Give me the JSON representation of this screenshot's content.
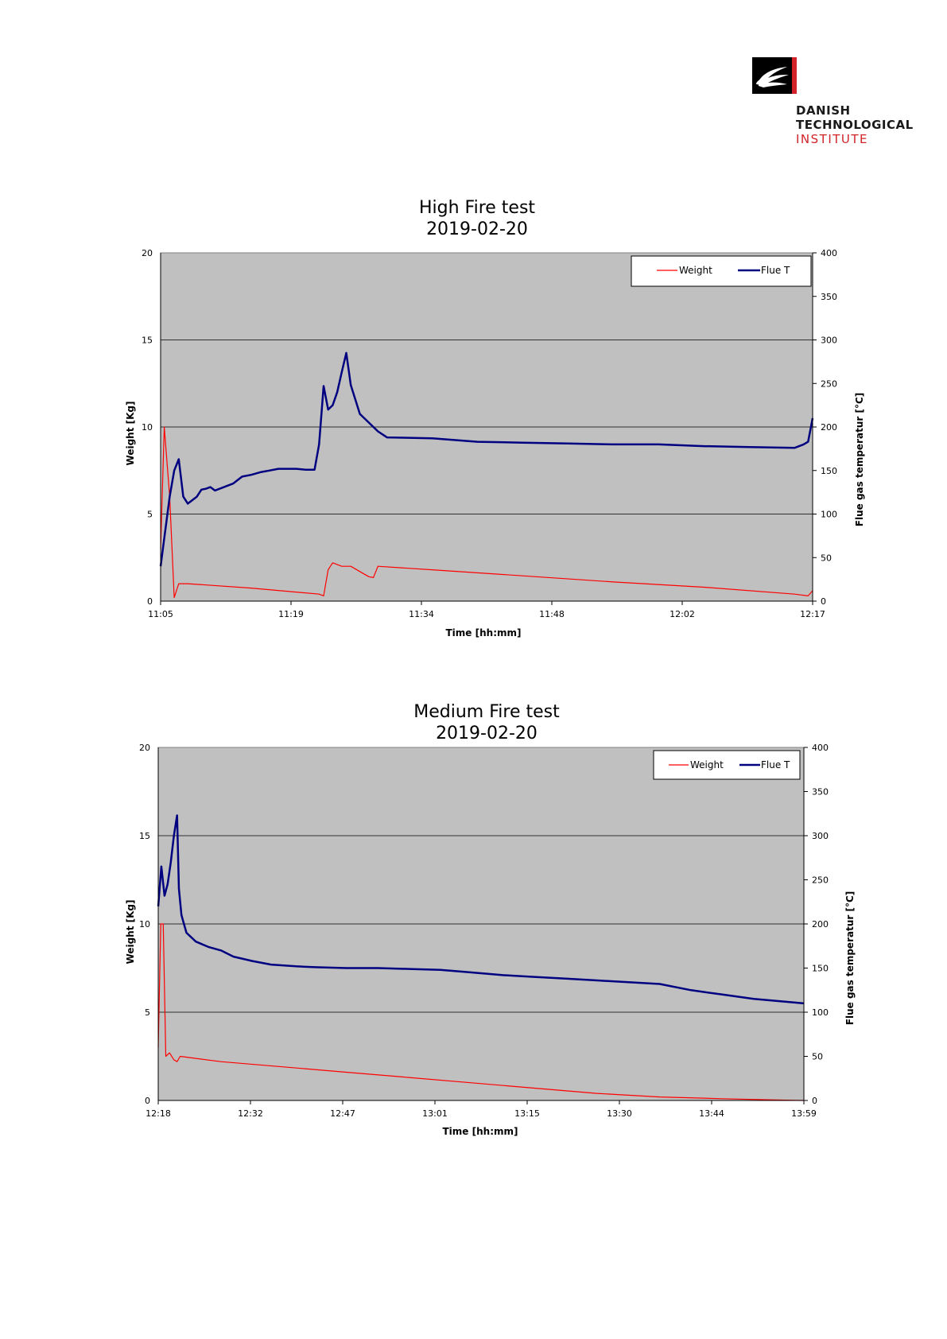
{
  "logo": {
    "line1": "DANISH",
    "line2": "TECHNOLOGICAL",
    "line3": "INSTITUTE",
    "icon": "dti-hand-logo-icon",
    "accent_color": "#d2232a"
  },
  "chart_data": [
    {
      "type": "line",
      "title_line1": "High Fire test",
      "title_line2": "2019-02-20",
      "xlabel": "Time [hh:mm]",
      "ylabel_left": "Weight [Kg]",
      "ylabel_right": "Flue gas temperatur [°C]",
      "x_ticks": [
        "11:05",
        "11:19",
        "11:34",
        "11:48",
        "12:02",
        "12:17"
      ],
      "x_unit": "minutes after 11:05",
      "xlim": [
        0,
        72
      ],
      "ylim_left": [
        0,
        20
      ],
      "ylim_right": [
        0,
        400
      ],
      "left_ticks": [
        0,
        5,
        10,
        15,
        20
      ],
      "right_ticks": [
        0,
        50,
        100,
        150,
        200,
        250,
        300,
        350,
        400
      ],
      "grid": "horizontal",
      "legend_position": "top-right",
      "plot_background": "#c0c0c0",
      "series": [
        {
          "name": "Weight",
          "axis": "left",
          "color": "#ff0000",
          "points": [
            [
              0,
              3.0
            ],
            [
              0.4,
              10.0
            ],
            [
              1.0,
              6.0
            ],
            [
              1.5,
              0.2
            ],
            [
              2.0,
              1.0
            ],
            [
              3.0,
              1.0
            ],
            [
              10.0,
              0.75
            ],
            [
              17.5,
              0.4
            ],
            [
              18.0,
              0.3
            ],
            [
              18.5,
              1.8
            ],
            [
              19.0,
              2.2
            ],
            [
              20.0,
              2.0
            ],
            [
              21.0,
              2.0
            ],
            [
              22.0,
              1.7
            ],
            [
              23.0,
              1.4
            ],
            [
              23.5,
              1.35
            ],
            [
              24.0,
              2.0
            ],
            [
              30.0,
              1.8
            ],
            [
              40.0,
              1.45
            ],
            [
              50.0,
              1.1
            ],
            [
              60.0,
              0.8
            ],
            [
              70.0,
              0.4
            ],
            [
              71.5,
              0.3
            ],
            [
              72.0,
              0.6
            ]
          ]
        },
        {
          "name": "Flue T",
          "axis": "right",
          "color": "#000080",
          "points": [
            [
              0,
              40
            ],
            [
              0.5,
              80
            ],
            [
              1.0,
              120
            ],
            [
              1.5,
              150
            ],
            [
              2.0,
              163
            ],
            [
              2.5,
              120
            ],
            [
              3.0,
              112
            ],
            [
              4.0,
              120
            ],
            [
              4.5,
              128
            ],
            [
              5.0,
              129
            ],
            [
              5.5,
              131
            ],
            [
              6.0,
              127
            ],
            [
              7.0,
              131
            ],
            [
              8.0,
              135
            ],
            [
              9.0,
              143
            ],
            [
              10.0,
              145
            ],
            [
              11.0,
              148
            ],
            [
              12.0,
              150
            ],
            [
              13.0,
              152
            ],
            [
              14.0,
              152
            ],
            [
              15.0,
              152
            ],
            [
              16.0,
              151
            ],
            [
              17.0,
              151
            ],
            [
              17.5,
              180
            ],
            [
              18.0,
              247
            ],
            [
              18.5,
              220
            ],
            [
              19.0,
              225
            ],
            [
              19.5,
              240
            ],
            [
              20.0,
              263
            ],
            [
              20.5,
              285
            ],
            [
              21.0,
              248
            ],
            [
              22.0,
              215
            ],
            [
              23.0,
              205
            ],
            [
              24.0,
              195
            ],
            [
              25.0,
              188
            ],
            [
              30.0,
              187
            ],
            [
              35.0,
              183
            ],
            [
              40.0,
              182
            ],
            [
              45.0,
              181
            ],
            [
              50.0,
              180
            ],
            [
              55.0,
              180
            ],
            [
              60.0,
              178
            ],
            [
              65.0,
              177
            ],
            [
              70.0,
              176
            ],
            [
              71.0,
              180
            ],
            [
              71.5,
              183
            ],
            [
              72.0,
              210
            ]
          ]
        }
      ]
    },
    {
      "type": "line",
      "title_line1": "Medium Fire test",
      "title_line2": "2019-02-20",
      "xlabel": "Time [hh:mm]",
      "ylabel_left": "Weight [Kg]",
      "ylabel_right": "Flue gas temperatur [°C]",
      "x_ticks": [
        "12:18",
        "12:32",
        "12:47",
        "13:01",
        "13:15",
        "13:30",
        "13:44",
        "13:59"
      ],
      "x_unit": "minutes after 12:18",
      "xlim": [
        0,
        103
      ],
      "ylim_left": [
        0,
        20
      ],
      "ylim_right": [
        0,
        400
      ],
      "left_ticks": [
        0,
        5,
        10,
        15,
        20
      ],
      "right_ticks": [
        0,
        50,
        100,
        150,
        200,
        250,
        300,
        350,
        400
      ],
      "grid": "horizontal",
      "legend_position": "top-right",
      "plot_background": "#c0c0c0",
      "series": [
        {
          "name": "Weight",
          "axis": "left",
          "color": "#ff0000",
          "points": [
            [
              0,
              3.0
            ],
            [
              0.4,
              10.0
            ],
            [
              0.8,
              10.0
            ],
            [
              1.2,
              2.5
            ],
            [
              1.8,
              2.7
            ],
            [
              2.5,
              2.3
            ],
            [
              3.0,
              2.2
            ],
            [
              3.5,
              2.5
            ],
            [
              10.0,
              2.2
            ],
            [
              20.0,
              1.9
            ],
            [
              30.0,
              1.6
            ],
            [
              40.0,
              1.3
            ],
            [
              50.0,
              1.0
            ],
            [
              60.0,
              0.7
            ],
            [
              70.0,
              0.4
            ],
            [
              80.0,
              0.2
            ],
            [
              90.0,
              0.1
            ],
            [
              100.0,
              0.02
            ],
            [
              103.0,
              0.0
            ]
          ]
        },
        {
          "name": "Flue T",
          "axis": "right",
          "color": "#000080",
          "points": [
            [
              0,
              220
            ],
            [
              0.5,
              265
            ],
            [
              1.0,
              232
            ],
            [
              1.5,
              245
            ],
            [
              2.0,
              270
            ],
            [
              2.5,
              300
            ],
            [
              3.0,
              323
            ],
            [
              3.3,
              240
            ],
            [
              3.7,
              210
            ],
            [
              4.5,
              190
            ],
            [
              6.0,
              180
            ],
            [
              8.0,
              174
            ],
            [
              10.0,
              170
            ],
            [
              12.0,
              163
            ],
            [
              15.0,
              158
            ],
            [
              18.0,
              154
            ],
            [
              22.0,
              152
            ],
            [
              25.0,
              151
            ],
            [
              30.0,
              150
            ],
            [
              35.0,
              150
            ],
            [
              40.0,
              149
            ],
            [
              45.0,
              148
            ],
            [
              50.0,
              145
            ],
            [
              55.0,
              142
            ],
            [
              60.0,
              140
            ],
            [
              65.0,
              138
            ],
            [
              70.0,
              136
            ],
            [
              75.0,
              134
            ],
            [
              80.0,
              132
            ],
            [
              85.0,
              125
            ],
            [
              90.0,
              120
            ],
            [
              95.0,
              115
            ],
            [
              100.0,
              112
            ],
            [
              103.0,
              110
            ]
          ]
        }
      ]
    }
  ]
}
